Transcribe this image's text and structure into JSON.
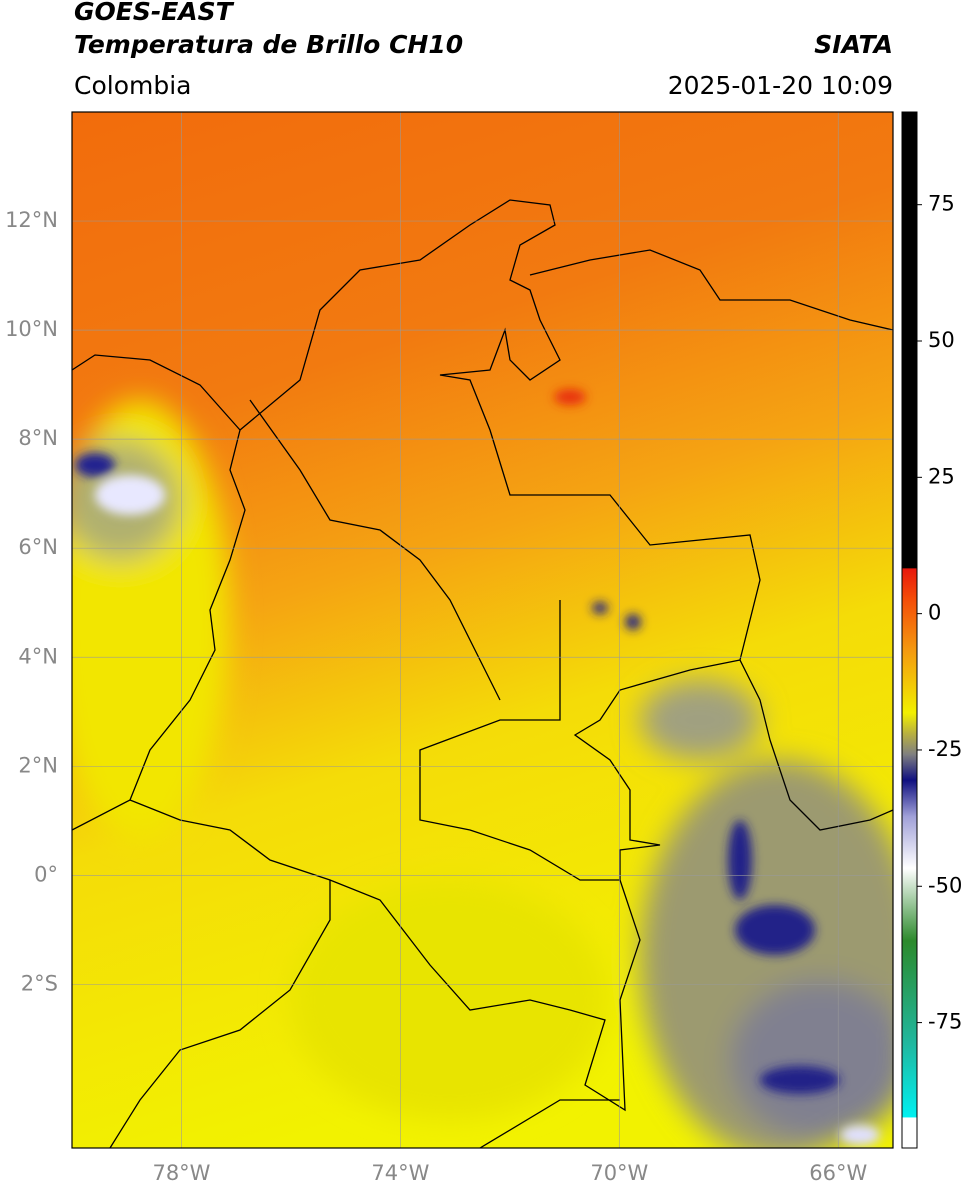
{
  "header": {
    "title": "GOES-EAST",
    "subtitle": "Temperatura de Brillo CH10",
    "region": "Colombia",
    "source": "SIATA",
    "datetime": "2025-01-20 10:09"
  },
  "map": {
    "lonlim": [
      -80,
      -65
    ],
    "latlim": [
      -5,
      14
    ],
    "lonticks": [
      {
        "value": -78,
        "label": "78°W"
      },
      {
        "value": -74,
        "label": "74°W"
      },
      {
        "value": -70,
        "label": "70°W"
      },
      {
        "value": -66,
        "label": "66°W"
      }
    ],
    "latticks": [
      {
        "value": 12,
        "label": "12°N"
      },
      {
        "value": 10,
        "label": "10°N"
      },
      {
        "value": 8,
        "label": "8°N"
      },
      {
        "value": 6,
        "label": "6°N"
      },
      {
        "value": 4,
        "label": "4°N"
      },
      {
        "value": 2,
        "label": "2°N"
      },
      {
        "value": 0,
        "label": "0°"
      },
      {
        "value": -2,
        "label": "2°S"
      }
    ],
    "grid": true
  },
  "colorbar": {
    "lim": [
      -98,
      92
    ],
    "ticks": [
      75,
      50,
      25,
      0,
      -25,
      -50,
      -75
    ]
  }
}
